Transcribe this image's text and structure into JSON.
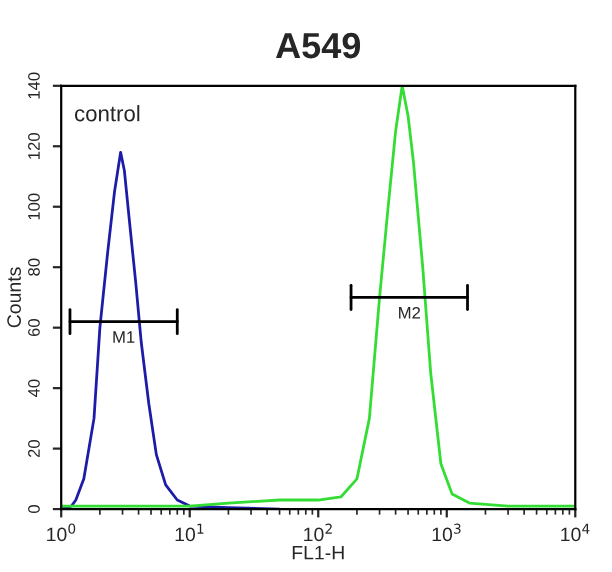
{
  "chart_data": {
    "type": "line",
    "title": "A549",
    "xlabel": "FL1-H",
    "ylabel": "Counts",
    "log": "x",
    "annotations": [
      "control"
    ],
    "series": [
      {
        "color": "#1c1ca8",
        "x": [
          1,
          1.2,
          1.3,
          1.5,
          1.8,
          2.0,
          2.3,
          2.6,
          2.9,
          3.1,
          3.4,
          3.8,
          4.2,
          4.8,
          5.5,
          6.5,
          8,
          10,
          20,
          50
        ],
        "values": [
          0,
          1,
          3,
          10,
          30,
          60,
          85,
          105,
          118,
          112,
          95,
          75,
          55,
          35,
          18,
          8,
          3,
          1,
          0.5,
          0
        ]
      },
      {
        "color": "#33dd33",
        "x": [
          1,
          10,
          20,
          50,
          100,
          150,
          200,
          250,
          300,
          350,
          400,
          450,
          500,
          550,
          650,
          750,
          900,
          1100,
          1500,
          3000,
          10000
        ],
        "values": [
          1,
          1,
          2,
          3,
          3,
          4,
          10,
          30,
          70,
          100,
          125,
          140,
          130,
          115,
          80,
          45,
          15,
          5,
          2,
          1,
          1
        ]
      },
      {
        "name": "M1",
        "color": "#000000",
        "x": [
          1.17,
          8
        ],
        "values": [
          62,
          62
        ]
      },
      {
        "name": "M2",
        "color": "#000000",
        "x": [
          180,
          1450
        ],
        "values": [
          70,
          70
        ]
      }
    ],
    "xlim": [
      1,
      10000
    ],
    "xticks": [
      {
        "value": 1,
        "label": "10$^{0}$"
      },
      {
        "value": 10,
        "label": "10$^{1}$"
      },
      {
        "value": 100,
        "label": "10$^{2}$"
      },
      {
        "value": 1000,
        "label": "10$^{3}$"
      },
      {
        "value": 10000,
        "label": "10$^{4}$"
      }
    ],
    "ylim": [
      0,
      140
    ],
    "yticks": [
      0,
      20,
      40,
      60,
      80,
      100,
      120,
      140
    ],
    "grid": false,
    "legend": false
  }
}
